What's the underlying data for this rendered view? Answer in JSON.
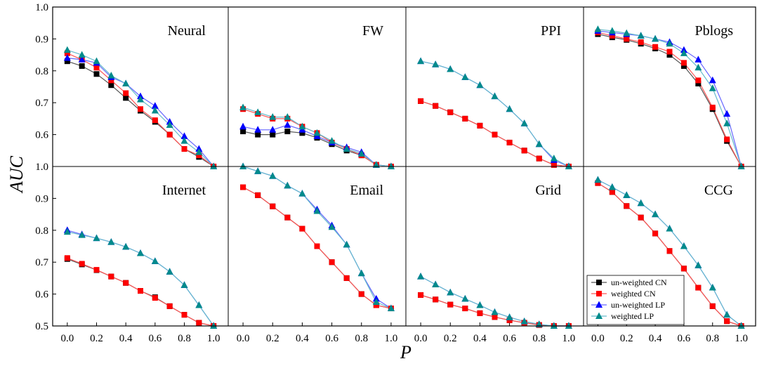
{
  "figure": {
    "xlabel": "P",
    "ylabel": "AUC"
  },
  "colors": {
    "un-weighted CN": "#000000",
    "weighted CN": "#ff0000",
    "un-weighted LP": "#0000ff",
    "weighted LP": "#008b8b",
    "line_un-weighted CN": "#555555",
    "line_weighted CN": "#ff5555",
    "line_un-weighted LP": "#6666ff",
    "line_weighted LP": "#66bbcc"
  },
  "legend": {
    "placement": "bottom-left of CCG panel",
    "entries": [
      "un-weighted CN",
      "weighted CN",
      "un-weighted LP",
      "weighted LP"
    ]
  },
  "chart_data": [
    {
      "type": "line",
      "title": "Neural",
      "x": [
        0.0,
        0.1,
        0.2,
        0.3,
        0.4,
        0.5,
        0.6,
        0.7,
        0.8,
        0.9,
        1.0
      ],
      "ylim": [
        0.5,
        1.0
      ],
      "xlim": [
        -0.1,
        1.1
      ],
      "series": [
        {
          "name": "un-weighted CN",
          "values": [
            0.83,
            0.815,
            0.79,
            0.755,
            0.715,
            0.675,
            0.64,
            0.6,
            0.555,
            0.53,
            0.5
          ]
        },
        {
          "name": "weighted CN",
          "values": [
            0.855,
            0.835,
            0.81,
            0.77,
            0.73,
            0.68,
            0.645,
            0.6,
            0.555,
            0.535,
            0.5
          ]
        },
        {
          "name": "un-weighted LP",
          "values": [
            0.84,
            0.835,
            0.825,
            0.78,
            0.76,
            0.72,
            0.69,
            0.64,
            0.595,
            0.555,
            0.5
          ]
        },
        {
          "name": "weighted LP",
          "values": [
            0.865,
            0.85,
            0.83,
            0.785,
            0.76,
            0.71,
            0.675,
            0.63,
            0.58,
            0.545,
            0.5
          ]
        }
      ]
    },
    {
      "type": "line",
      "title": "FW",
      "x": [
        0.0,
        0.1,
        0.2,
        0.3,
        0.4,
        0.5,
        0.6,
        0.7,
        0.8,
        0.9,
        1.0
      ],
      "ylim": [
        0.5,
        1.0
      ],
      "xlim": [
        -0.1,
        1.1
      ],
      "series": [
        {
          "name": "un-weighted CN",
          "values": [
            0.61,
            0.6,
            0.6,
            0.61,
            0.605,
            0.59,
            0.57,
            0.55,
            0.535,
            0.505,
            0.5
          ]
        },
        {
          "name": "weighted CN",
          "values": [
            0.68,
            0.665,
            0.65,
            0.65,
            0.625,
            0.605,
            0.575,
            0.555,
            0.535,
            0.505,
            0.5
          ]
        },
        {
          "name": "un-weighted LP",
          "values": [
            0.625,
            0.615,
            0.615,
            0.63,
            0.615,
            0.595,
            0.575,
            0.56,
            0.545,
            0.505,
            0.5
          ]
        },
        {
          "name": "weighted LP",
          "values": [
            0.685,
            0.67,
            0.655,
            0.655,
            0.625,
            0.605,
            0.58,
            0.555,
            0.54,
            0.505,
            0.5
          ]
        }
      ]
    },
    {
      "type": "line",
      "title": "PPI",
      "x": [
        0.0,
        0.1,
        0.2,
        0.3,
        0.4,
        0.5,
        0.6,
        0.7,
        0.8,
        0.9,
        1.0
      ],
      "ylim": [
        0.5,
        1.0
      ],
      "xlim": [
        -0.1,
        1.1
      ],
      "series": [
        {
          "name": "un-weighted CN",
          "values": [
            0.705,
            0.69,
            0.67,
            0.65,
            0.628,
            0.6,
            0.575,
            0.55,
            0.525,
            0.505,
            0.5
          ]
        },
        {
          "name": "weighted CN",
          "values": [
            0.705,
            0.69,
            0.67,
            0.65,
            0.628,
            0.6,
            0.575,
            0.55,
            0.525,
            0.505,
            0.5
          ]
        },
        {
          "name": "un-weighted LP",
          "values": [
            0.83,
            0.82,
            0.805,
            0.78,
            0.755,
            0.72,
            0.68,
            0.635,
            0.57,
            0.52,
            0.5
          ]
        },
        {
          "name": "weighted LP",
          "values": [
            0.83,
            0.82,
            0.805,
            0.78,
            0.755,
            0.72,
            0.68,
            0.635,
            0.57,
            0.525,
            0.5
          ]
        }
      ]
    },
    {
      "type": "line",
      "title": "Pblogs",
      "x": [
        0.0,
        0.1,
        0.2,
        0.3,
        0.4,
        0.5,
        0.6,
        0.7,
        0.8,
        0.9,
        1.0
      ],
      "ylim": [
        0.5,
        1.0
      ],
      "xlim": [
        -0.1,
        1.1
      ],
      "series": [
        {
          "name": "un-weighted CN",
          "values": [
            0.915,
            0.905,
            0.897,
            0.885,
            0.87,
            0.85,
            0.815,
            0.76,
            0.68,
            0.58,
            0.5
          ]
        },
        {
          "name": "weighted CN",
          "values": [
            0.92,
            0.91,
            0.9,
            0.89,
            0.875,
            0.86,
            0.825,
            0.77,
            0.685,
            0.585,
            0.5
          ]
        },
        {
          "name": "un-weighted LP",
          "values": [
            0.925,
            0.92,
            0.915,
            0.91,
            0.9,
            0.89,
            0.865,
            0.835,
            0.77,
            0.665,
            0.5
          ]
        },
        {
          "name": "weighted LP",
          "values": [
            0.93,
            0.925,
            0.918,
            0.91,
            0.9,
            0.885,
            0.855,
            0.81,
            0.745,
            0.635,
            0.5
          ]
        }
      ]
    },
    {
      "type": "line",
      "title": "Internet",
      "x": [
        0.0,
        0.1,
        0.2,
        0.3,
        0.4,
        0.5,
        0.6,
        0.7,
        0.8,
        0.9,
        1.0
      ],
      "ylim": [
        0.5,
        1.0
      ],
      "xlim": [
        -0.1,
        1.1
      ],
      "series": [
        {
          "name": "un-weighted CN",
          "values": [
            0.71,
            0.693,
            0.675,
            0.655,
            0.635,
            0.61,
            0.59,
            0.562,
            0.535,
            0.51,
            0.5
          ]
        },
        {
          "name": "weighted CN",
          "values": [
            0.713,
            0.695,
            0.676,
            0.655,
            0.635,
            0.61,
            0.588,
            0.562,
            0.535,
            0.51,
            0.5
          ]
        },
        {
          "name": "un-weighted LP",
          "values": [
            0.8,
            0.787,
            0.775,
            0.763,
            0.748,
            0.728,
            0.703,
            0.67,
            0.628,
            0.565,
            0.5
          ]
        },
        {
          "name": "weighted LP",
          "values": [
            0.795,
            0.785,
            0.775,
            0.763,
            0.748,
            0.728,
            0.703,
            0.67,
            0.628,
            0.565,
            0.5
          ]
        }
      ]
    },
    {
      "type": "line",
      "title": "Email",
      "x": [
        0.0,
        0.1,
        0.2,
        0.3,
        0.4,
        0.5,
        0.6,
        0.7,
        0.8,
        0.9,
        1.0
      ],
      "ylim": [
        0.5,
        1.0
      ],
      "xlim": [
        -0.1,
        1.1
      ],
      "series": [
        {
          "name": "un-weighted CN",
          "values": [
            0.935,
            0.91,
            0.875,
            0.84,
            0.805,
            0.75,
            0.7,
            0.65,
            0.6,
            0.565,
            0.555
          ]
        },
        {
          "name": "weighted CN",
          "values": [
            0.935,
            0.91,
            0.875,
            0.84,
            0.805,
            0.75,
            0.7,
            0.65,
            0.6,
            0.565,
            0.555
          ]
        },
        {
          "name": "un-weighted LP",
          "values": [
            1.0,
            0.985,
            0.97,
            0.94,
            0.915,
            0.865,
            0.815,
            0.755,
            0.665,
            0.585,
            0.555
          ]
        },
        {
          "name": "weighted LP",
          "values": [
            1.0,
            0.985,
            0.97,
            0.94,
            0.915,
            0.86,
            0.81,
            0.755,
            0.665,
            0.575,
            0.555
          ]
        }
      ]
    },
    {
      "type": "line",
      "title": "Grid",
      "x": [
        0.0,
        0.1,
        0.2,
        0.3,
        0.4,
        0.5,
        0.6,
        0.7,
        0.8,
        0.9,
        1.0
      ],
      "ylim": [
        0.5,
        1.0
      ],
      "xlim": [
        -0.1,
        1.1
      ],
      "series": [
        {
          "name": "un-weighted CN",
          "values": [
            0.597,
            0.583,
            0.567,
            0.555,
            0.54,
            0.528,
            0.518,
            0.51,
            0.503,
            0.5,
            0.5
          ]
        },
        {
          "name": "weighted CN",
          "values": [
            0.597,
            0.583,
            0.567,
            0.555,
            0.54,
            0.528,
            0.518,
            0.51,
            0.503,
            0.5,
            0.5
          ]
        },
        {
          "name": "un-weighted LP",
          "values": [
            0.655,
            0.63,
            0.605,
            0.585,
            0.565,
            0.543,
            0.527,
            0.514,
            0.505,
            0.5,
            0.5
          ]
        },
        {
          "name": "weighted LP",
          "values": [
            0.655,
            0.63,
            0.605,
            0.585,
            0.565,
            0.543,
            0.527,
            0.514,
            0.505,
            0.5,
            0.5
          ]
        }
      ]
    },
    {
      "type": "line",
      "title": "CCG",
      "x": [
        0.0,
        0.1,
        0.2,
        0.3,
        0.4,
        0.5,
        0.6,
        0.7,
        0.8,
        0.9,
        1.0
      ],
      "ylim": [
        0.5,
        1.0
      ],
      "xlim": [
        -0.1,
        1.1
      ],
      "series": [
        {
          "name": "un-weighted CN",
          "values": [
            0.948,
            0.92,
            0.876,
            0.84,
            0.79,
            0.735,
            0.68,
            0.62,
            0.562,
            0.515,
            0.5
          ]
        },
        {
          "name": "weighted CN",
          "values": [
            0.948,
            0.92,
            0.876,
            0.84,
            0.79,
            0.735,
            0.68,
            0.62,
            0.562,
            0.515,
            0.5
          ]
        },
        {
          "name": "un-weighted LP",
          "values": [
            0.958,
            0.935,
            0.91,
            0.885,
            0.85,
            0.805,
            0.75,
            0.69,
            0.62,
            0.535,
            0.5
          ]
        },
        {
          "name": "weighted LP",
          "values": [
            0.958,
            0.935,
            0.91,
            0.885,
            0.85,
            0.805,
            0.75,
            0.69,
            0.62,
            0.535,
            0.5
          ]
        }
      ]
    }
  ],
  "ticks": {
    "y": [
      "0.5",
      "0.6",
      "0.7",
      "0.8",
      "0.9",
      "1.0"
    ],
    "x": [
      "0.0",
      "0.2",
      "0.4",
      "0.6",
      "0.8",
      "1.0"
    ]
  }
}
